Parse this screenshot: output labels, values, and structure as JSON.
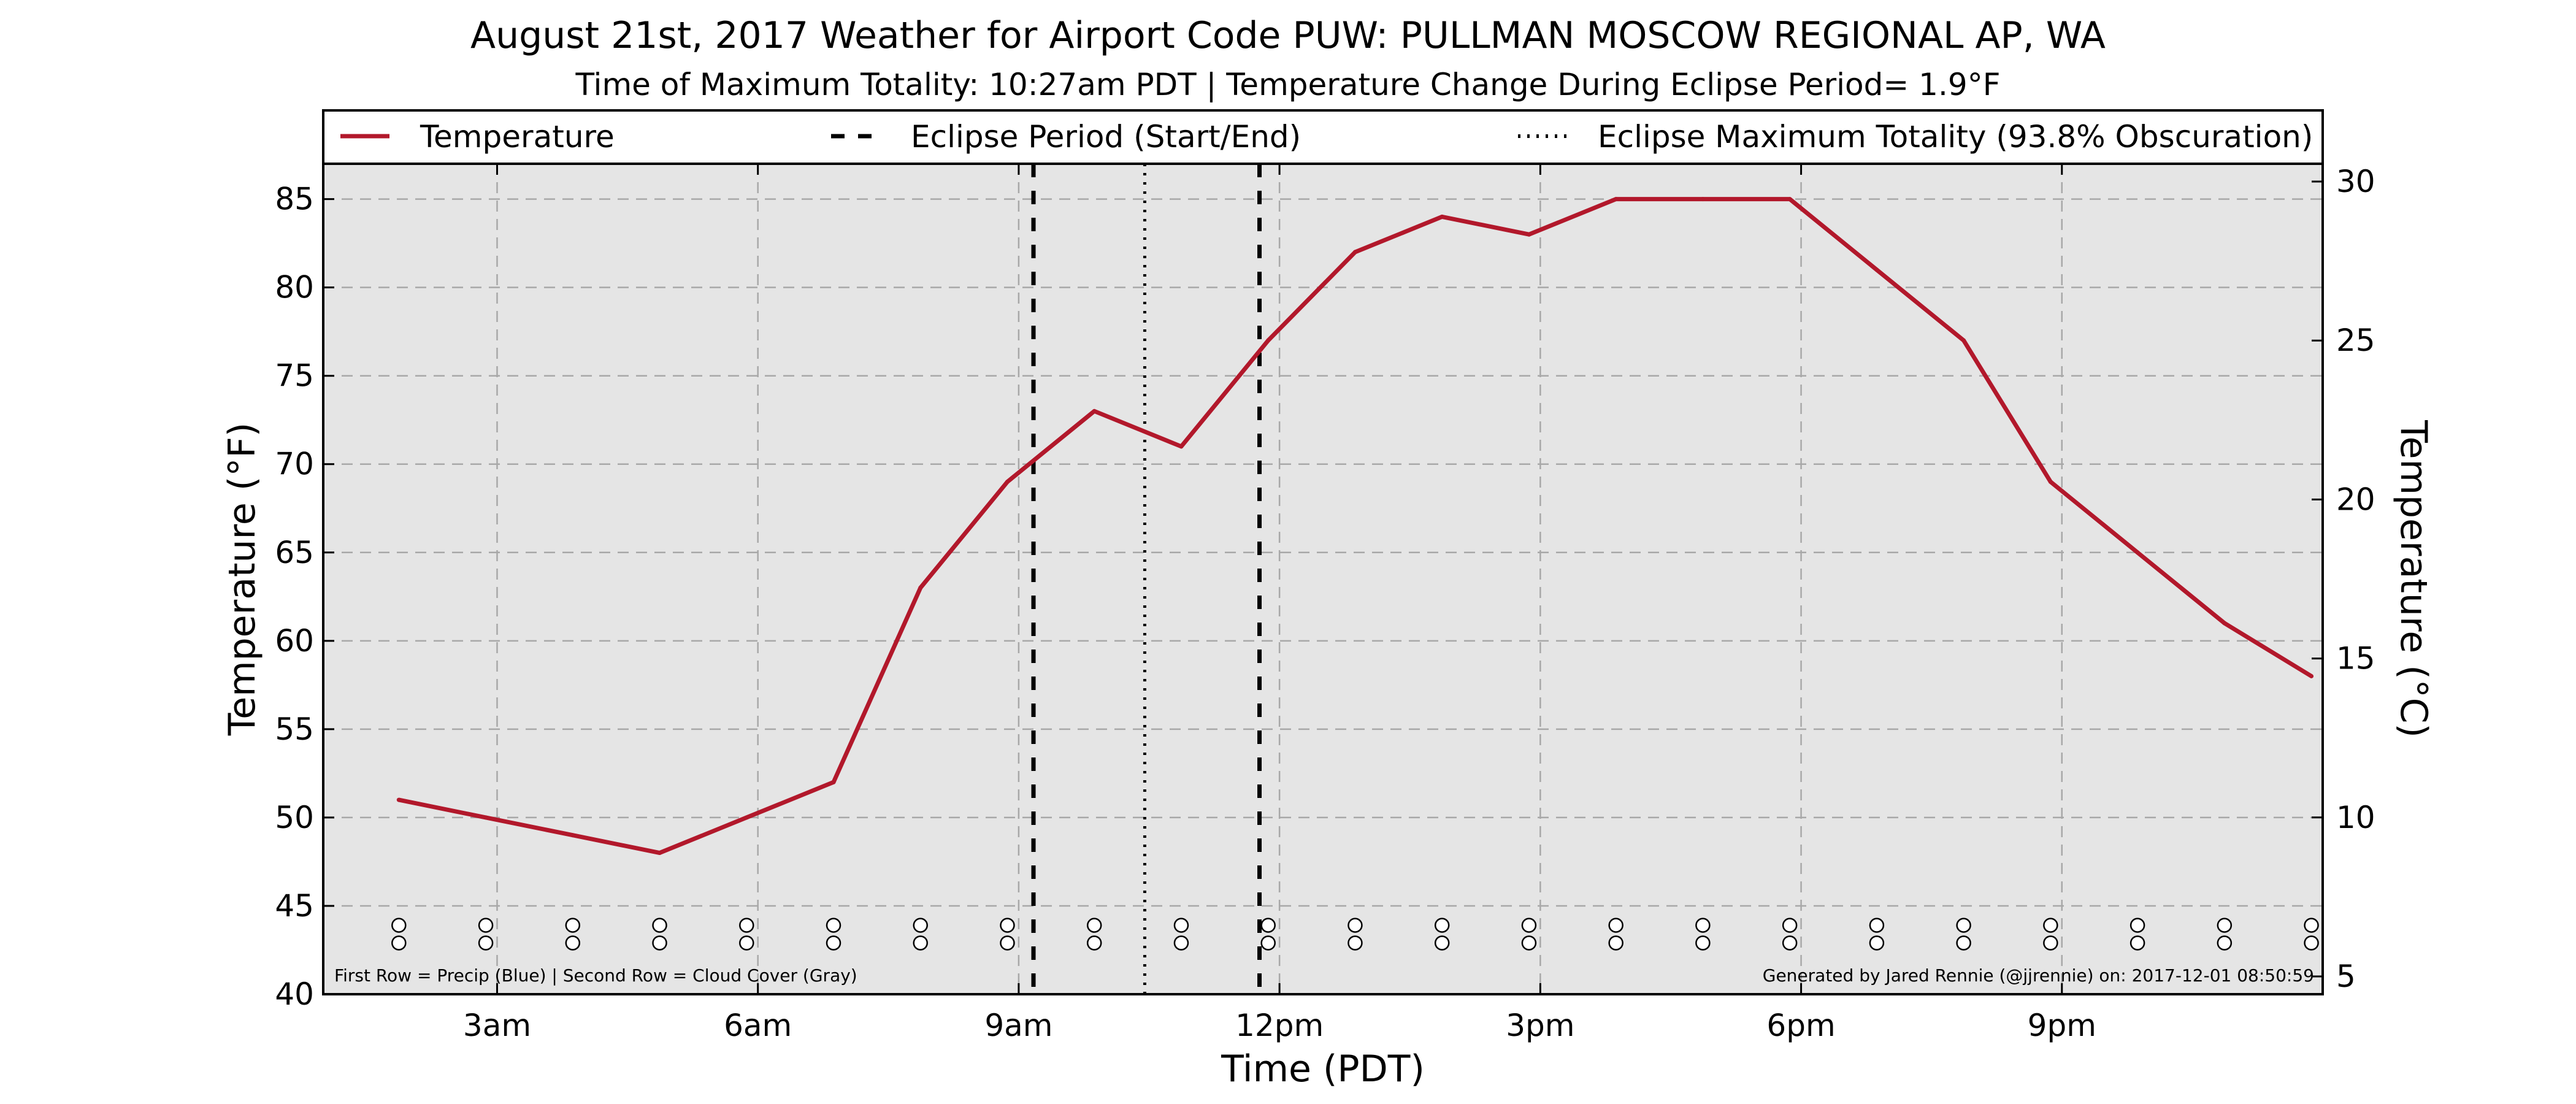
{
  "chart_data": {
    "type": "line",
    "title": "August 21st, 2017 Weather for Airport Code PUW: PULLMAN MOSCOW REGIONAL AP, WA",
    "subtitle": "Time of Maximum Totality: 10:27am PDT | Temperature Change During Eclipse Period= 1.9°F",
    "xlabel": "Time (PDT)",
    "ylabel": "Temperature (°F)",
    "ylabel_right": "Temperature (°C)",
    "xlim": [
      1.0,
      24.0
    ],
    "ylim": [
      40,
      87
    ],
    "ylim_right": [
      4.44,
      30.56
    ],
    "grid": true,
    "legend_position": "top",
    "x_ticks": [
      {
        "x": 3,
        "label": "3am"
      },
      {
        "x": 6,
        "label": "6am"
      },
      {
        "x": 9,
        "label": "9am"
      },
      {
        "x": 12,
        "label": "12pm"
      },
      {
        "x": 15,
        "label": "3pm"
      },
      {
        "x": 18,
        "label": "6pm"
      },
      {
        "x": 21,
        "label": "9pm"
      }
    ],
    "y_ticks": [
      40,
      45,
      50,
      55,
      60,
      65,
      70,
      75,
      80,
      85
    ],
    "y_ticks_right": [
      5,
      10,
      15,
      20,
      25,
      30
    ],
    "series": [
      {
        "name": "Temperature",
        "color": "#b2182b",
        "x": [
          1.87,
          2.87,
          3.87,
          4.87,
          5.87,
          6.87,
          7.87,
          8.87,
          9.87,
          10.87,
          11.87,
          12.87,
          13.87,
          14.87,
          15.87,
          16.87,
          17.87,
          18.87,
          19.87,
          20.87,
          21.87,
          22.87,
          23.87
        ],
        "values": [
          51,
          50,
          49,
          48,
          50,
          52,
          63,
          69,
          73,
          71,
          77,
          82,
          84,
          83,
          85,
          85,
          85,
          81,
          77,
          69,
          65,
          61,
          58
        ]
      }
    ],
    "eclipse_start": 9.17,
    "eclipse_end": 11.77,
    "eclipse_max": 10.45,
    "legend": [
      {
        "label": "Temperature",
        "style": "solid",
        "color": "#b2182b"
      },
      {
        "label": "Eclipse Period (Start/End)",
        "style": "dashed",
        "color": "#000000"
      },
      {
        "label": "Eclipse Maximum Totality (93.8% Obscuration)",
        "style": "dotted",
        "color": "#000000"
      }
    ],
    "marker_rows": {
      "x": [
        1.87,
        2.87,
        3.87,
        4.87,
        5.87,
        6.87,
        7.87,
        8.87,
        9.87,
        10.87,
        11.87,
        12.87,
        13.87,
        14.87,
        15.87,
        16.87,
        17.87,
        18.87,
        19.87,
        20.87,
        21.87,
        22.87,
        23.87
      ],
      "row_values": [
        43.9,
        42.9
      ]
    },
    "annotation_left": "First Row = Precip (Blue) | Second Row = Cloud Cover (Gray)",
    "annotation_right": "Generated by Jared Rennie (@jjrennie) on: 2017-12-01 08:50:59",
    "colors": {
      "plot_background": "#e5e5e5",
      "grid": "#a8a8a8",
      "line": "#b2182b"
    }
  }
}
